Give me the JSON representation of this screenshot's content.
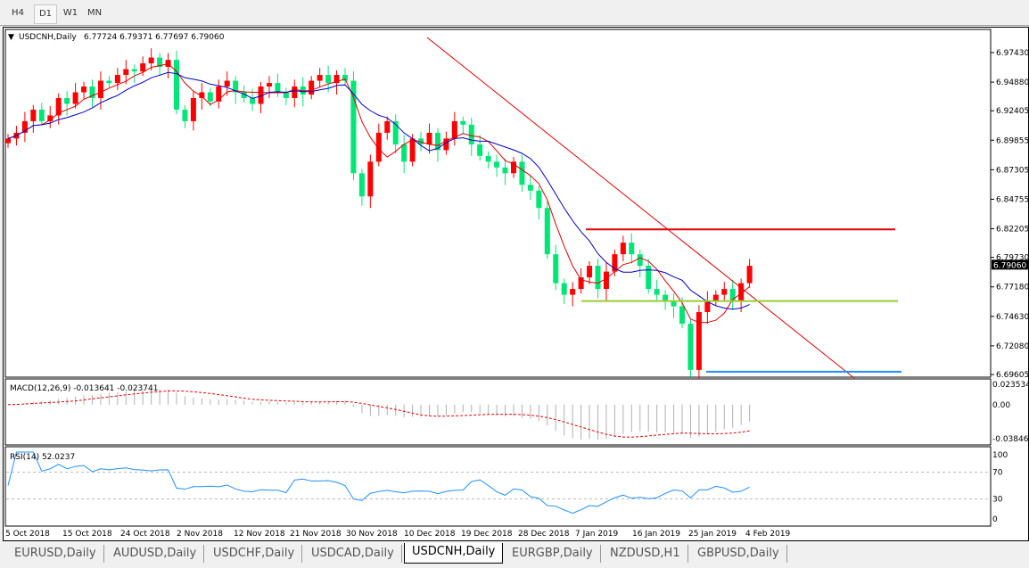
{
  "toolbar": {
    "timeframes": [
      "H4",
      "D1",
      "W1",
      "MN"
    ],
    "active": "D1"
  },
  "header": {
    "symbol": "USDCNH,Daily",
    "ohlc": "6.77724 6.79371 6.77697 6.79060"
  },
  "price_axis": {
    "ticks": [
      "6.97430",
      "6.94880",
      "6.92405",
      "6.89855",
      "6.87305",
      "6.84755",
      "6.82205",
      "6.79730",
      "6.77180",
      "6.74630",
      "6.72080",
      "6.69605"
    ],
    "current": "6.79060"
  },
  "macd": {
    "label": "MACD(12,26,9) -0.013641 -0.023741",
    "ticks": [
      "0.023534",
      "0.00",
      "-0.038466"
    ]
  },
  "rsi": {
    "label": "RSI(14) 52.0237",
    "ticks": [
      "100",
      "70",
      "30",
      "0"
    ]
  },
  "dates": [
    "5 Oct 2018",
    "15 Oct 2018",
    "24 Oct 2018",
    "2 Nov 2018",
    "12 Nov 2018",
    "21 Nov 2018",
    "30 Nov 2018",
    "10 Dec 2018",
    "19 Dec 2018",
    "28 Dec 2018",
    "7 Jan 2019",
    "16 Jan 2019",
    "25 Jan 2019",
    "4 Feb 2019"
  ],
  "tabs": [
    "EURUSD,Daily",
    "AUDUSD,Daily",
    "USDCHF,Daily",
    "USDCAD,Daily",
    "USDCNH,Daily",
    "EURGBP,Daily",
    "NZDUSD,H1",
    "GBPUSD,Daily"
  ],
  "active_tab": "USDCNH,Daily",
  "colors": {
    "bull": "#00e676",
    "bear": "#ff0000",
    "ma_fast": "#e00000",
    "ma_slow": "#0000c8",
    "rsi": "#1e90ff"
  },
  "levels": {
    "resistance": 6.8215,
    "support": 6.7595,
    "low": 6.6985
  },
  "chart_data": {
    "type": "candlestick",
    "closes": [
      6.9,
      6.905,
      6.915,
      6.925,
      6.915,
      6.92,
      6.935,
      6.93,
      6.94,
      6.945,
      6.935,
      6.95,
      6.948,
      6.955,
      6.96,
      6.958,
      6.965,
      6.97,
      6.962,
      6.968,
      6.925,
      6.915,
      6.935,
      6.94,
      6.932,
      6.945,
      6.95,
      6.94,
      6.935,
      6.93,
      6.945,
      6.948,
      6.94,
      6.935,
      6.945,
      6.938,
      6.95,
      6.955,
      6.948,
      6.955,
      6.95,
      6.87,
      6.85,
      6.88,
      6.905,
      6.915,
      6.895,
      6.88,
      6.9,
      6.895,
      6.905,
      6.89,
      6.9,
      6.915,
      6.912,
      6.895,
      6.885,
      6.88,
      6.875,
      6.87,
      6.88,
      6.86,
      6.855,
      6.84,
      6.8,
      6.775,
      6.765,
      6.77,
      6.78,
      6.79,
      6.77,
      6.785,
      6.8,
      6.81,
      6.8,
      6.79,
      6.77,
      6.765,
      6.76,
      6.755,
      6.74,
      6.7,
      6.75,
      6.76,
      6.765,
      6.77,
      6.76,
      6.775,
      6.79
    ],
    "ylim": [
      6.69605,
      6.9743
    ]
  }
}
